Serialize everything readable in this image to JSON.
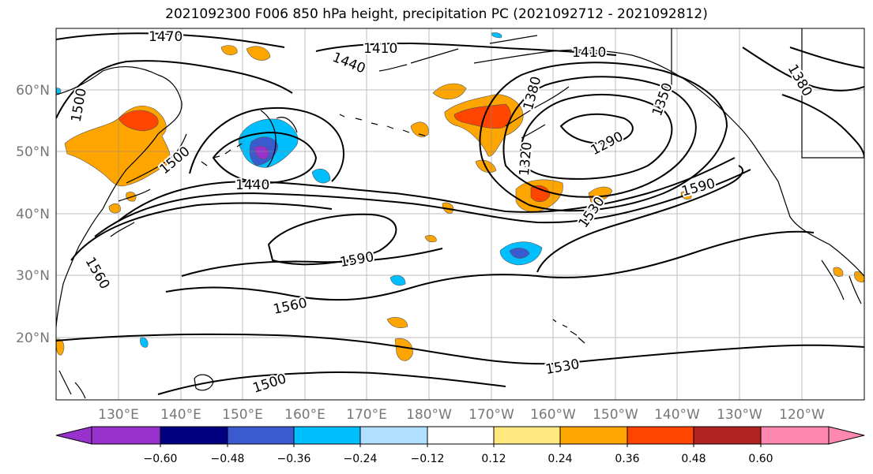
{
  "title": "2021092300 F006 850 hPa height, precipitation PC (2021092712 - 2021092812)",
  "lat_labels": [
    "60°N",
    "50°N",
    "40°N",
    "30°N",
    "20°N"
  ],
  "lon_labels": [
    "130°E",
    "140°E",
    "150°E",
    "160°E",
    "170°E",
    "180°W",
    "170°W",
    "160°W",
    "150°W",
    "140°W",
    "130°W",
    "120°W"
  ],
  "contour_labels": {
    "c1470": "1470",
    "c1410a": "1410",
    "c1410b": "1410",
    "c1440a": "1440",
    "c1440b": "1440",
    "c1500a": "1500",
    "c1500b": "1500",
    "c1500c": "1500",
    "c1380a": "1380",
    "c1380b": "1380",
    "c1320": "1320",
    "c1290": "1290",
    "c1350": "1350",
    "c1590a": "1590",
    "c1590b": "1590",
    "c1560a": "1560",
    "c1560b": "1560",
    "c1530a": "1530",
    "c1530b": "1530"
  },
  "colorbar": {
    "ticks": [
      "−0.60",
      "−0.48",
      "−0.36",
      "−0.24",
      "−0.12",
      "0.12",
      "0.24",
      "0.36",
      "0.48",
      "0.60"
    ],
    "colors": [
      "#9932cc",
      "#000080",
      "#3a5bd0",
      "#00bfff",
      "#b0e0ff",
      "#ffffff",
      "#ffe97f",
      "#ffa500",
      "#ff4500",
      "#b22222",
      "#ff88b0"
    ]
  }
}
